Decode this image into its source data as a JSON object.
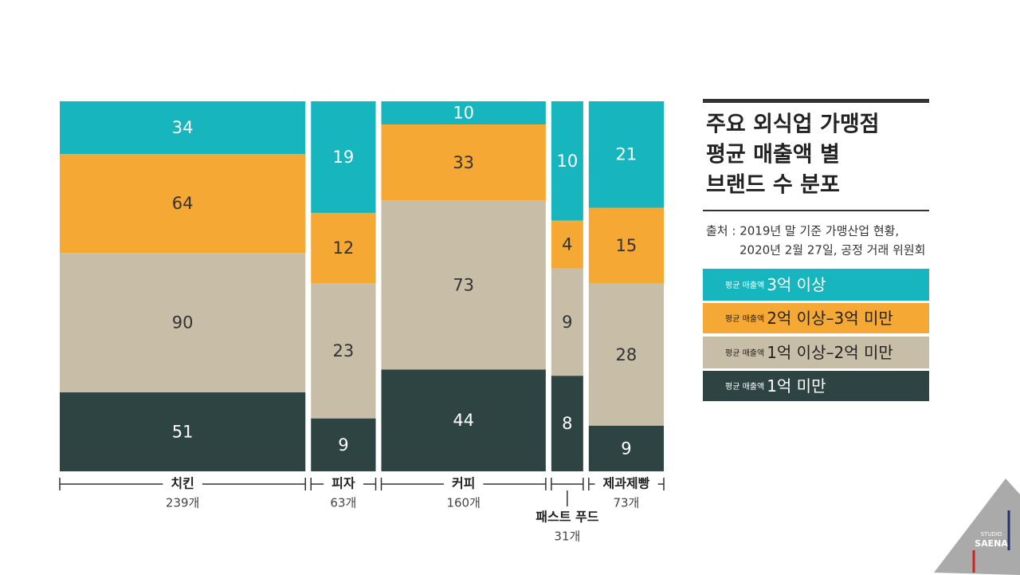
{
  "chart_data": {
    "type": "mosaic",
    "title_lines": [
      "주요 외식업 가맹점",
      "평균 매출액 별",
      "브랜드 수 분포"
    ],
    "source_lines": [
      "출처 : 2019년 말 기준  가맹산업 현황,",
      "2020년 2월 27일, 공정 거래 위원회"
    ],
    "legend_prefix": "평균 매출액",
    "categories": [
      "치킨",
      "피자",
      "커피",
      "패스트 푸드",
      "제과제빵"
    ],
    "totals": [
      239,
      63,
      160,
      31,
      73
    ],
    "total_labels": [
      "239개",
      "63개",
      "160개",
      "31개",
      "73개"
    ],
    "series": [
      {
        "name": "3억 이상",
        "color": "#17b6be",
        "values": [
          34,
          19,
          10,
          10,
          21
        ]
      },
      {
        "name": "2억 이상–3억 미만",
        "color": "#f5a833",
        "values": [
          64,
          12,
          33,
          4,
          15
        ]
      },
      {
        "name": "1억 이상–2억 미만",
        "color": "#c8bea8",
        "values": [
          90,
          23,
          73,
          9,
          28
        ]
      },
      {
        "name": "1억 미만",
        "color": "#2d4443",
        "values": [
          51,
          9,
          44,
          8,
          9
        ]
      }
    ],
    "logo": {
      "top": "STUDIO",
      "bottom": "SAENA"
    }
  }
}
